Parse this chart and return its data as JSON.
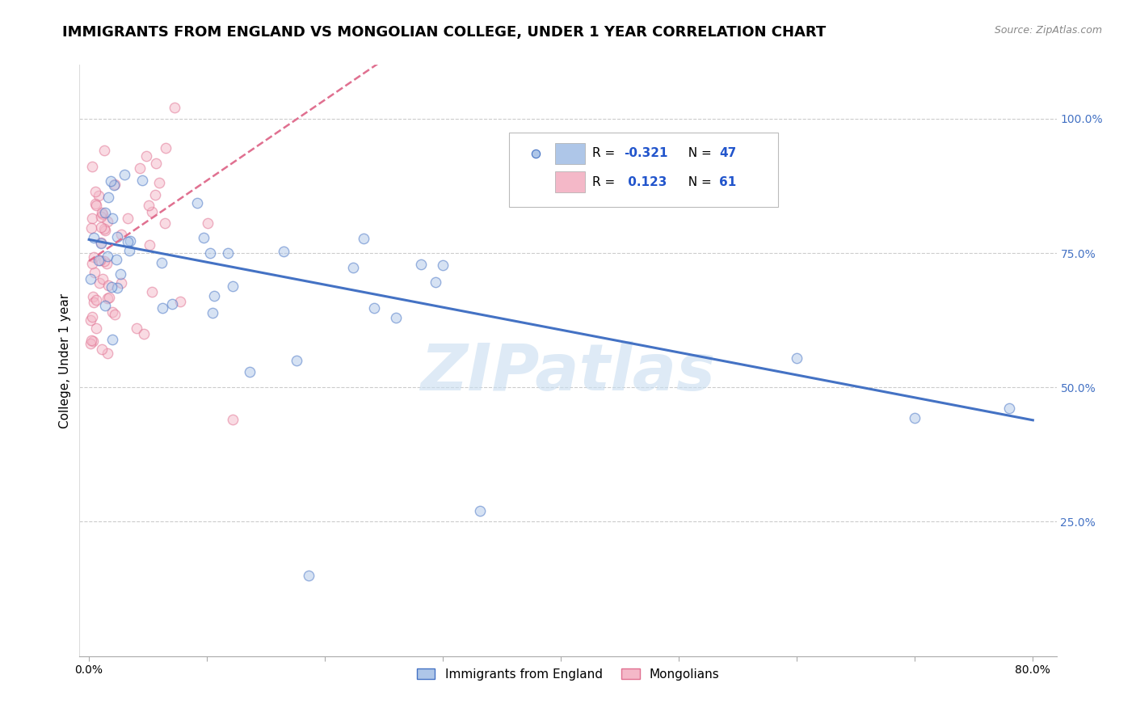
{
  "title": "IMMIGRANTS FROM ENGLAND VS MONGOLIAN COLLEGE, UNDER 1 YEAR CORRELATION CHART",
  "source": "Source: ZipAtlas.com",
  "ylabel": "College, Under 1 year",
  "xlim": [
    0.0,
    0.8
  ],
  "ylim": [
    0.0,
    1.05
  ],
  "england_color": "#aec6e8",
  "england_edge_color": "#4472c4",
  "mongolian_color": "#f4b8c8",
  "mongolian_edge_color": "#e07090",
  "england_line_color": "#4472c4",
  "mongolian_line_color": "#e07090",
  "background_color": "#ffffff",
  "grid_color": "#cccccc",
  "watermark_text": "ZIPatlas",
  "watermark_color": "#c8ddf0",
  "right_axis_color": "#4472c4",
  "title_fontsize": 13,
  "axis_label_fontsize": 11,
  "tick_fontsize": 10,
  "legend_R_color": "#2255cc",
  "legend_N_color": "#2255cc",
  "england_R": "-0.321",
  "england_N": "47",
  "mongolian_R": "0.123",
  "mongolian_N": "61",
  "marker_size": 80,
  "marker_alpha": 0.5,
  "eng_line_intercept": 0.775,
  "eng_line_slope": -0.42,
  "mon_line_intercept": 0.735,
  "mon_line_slope": 1.5
}
